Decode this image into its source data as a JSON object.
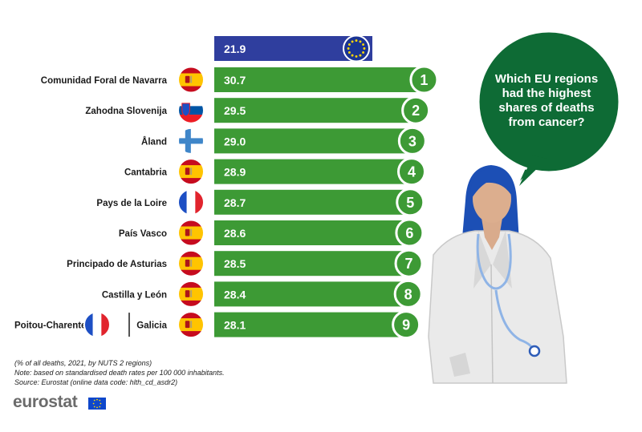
{
  "chart_data": {
    "type": "bar",
    "eu_average": {
      "value": "21.9",
      "flag": "eu-flag"
    },
    "categories": [
      "Comunidad Foral de Navarra",
      "Zahodna Slovenija",
      "Åland",
      "Cantabria",
      "Pays de la Loire",
      "País Vasco",
      "Principado de Asturias",
      "Castilla y León",
      "Galicia"
    ],
    "values": [
      30.7,
      29.5,
      29.0,
      28.9,
      28.7,
      28.6,
      28.5,
      28.4,
      28.1
    ],
    "value_labels": [
      "30.7",
      "29.5",
      "29.0",
      "28.9",
      "28.7",
      "28.6",
      "28.5",
      "28.4",
      "28.1"
    ],
    "ranks": [
      "1",
      "2",
      "3",
      "4",
      "5",
      "6",
      "7",
      "8",
      "9"
    ],
    "flags": [
      "spain-flag",
      "slovenia-flag",
      "finland-flag",
      "spain-flag",
      "france-flag",
      "spain-flag",
      "spain-flag",
      "spain-flag",
      "spain-flag"
    ],
    "tie": {
      "label": "Poitou-Charentes",
      "flag": "france-flag"
    },
    "xlim": [
      0,
      31
    ]
  },
  "bubble": {
    "text_lines": [
      "Which EU regions",
      "had the highest",
      "shares of deaths",
      "from cancer?"
    ]
  },
  "notes": {
    "line1": "(% of all deaths, 2021, by NUTS 2 regions)",
    "line2": "Note: based on standardised death rates per 100 000 inhabitants.",
    "line3": "Source: Eurostat (online data code: hlth_cd_asdr2)"
  },
  "logo": {
    "text": "eurostat"
  },
  "colors": {
    "eu_bar": "#2f3e9e",
    "bar": "#3d9a35",
    "bubble": "#0e6b35",
    "flag_blue": "#1d4fc4"
  }
}
